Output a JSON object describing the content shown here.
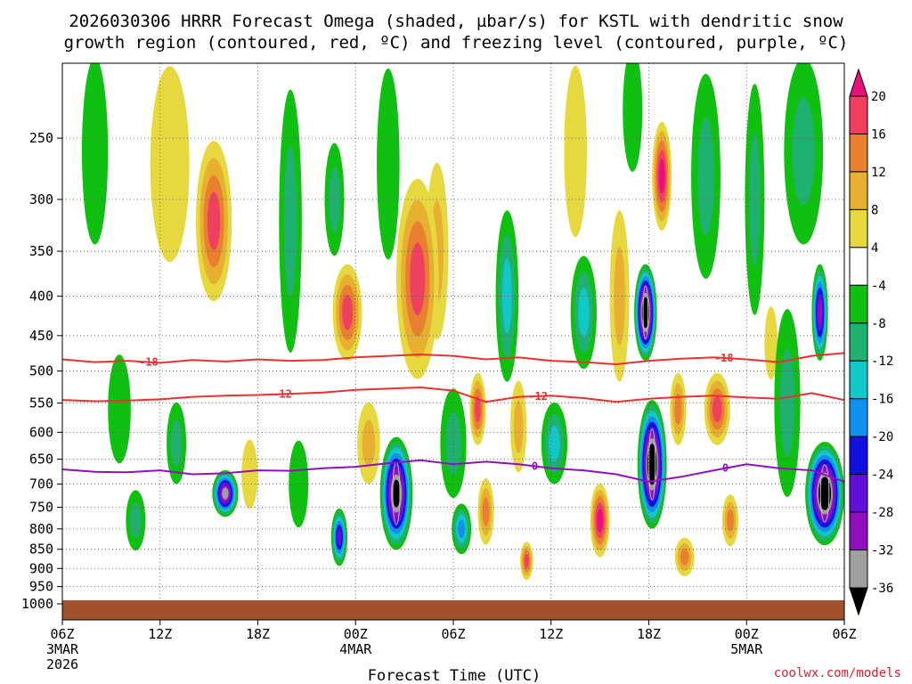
{
  "chart_data": {
    "type": "heatmap",
    "title_line1": "2026030306 HRRR Forecast Omega (shaded, µbar/s) for KSTL with dendritic snow",
    "title_line2": "growth region (contoured, red, ºC) and freezing level (contoured, purple, ºC)",
    "xlabel": "Forecast Time (UTC)",
    "credit": "coolwx.com/models",
    "x_range_hours": [
      0,
      48
    ],
    "y_range_mb": [
      200,
      1000
    ],
    "y_ticks": [
      250,
      300,
      350,
      400,
      450,
      500,
      550,
      600,
      650,
      700,
      750,
      800,
      850,
      900,
      950,
      1000
    ],
    "y_tick_labels": [
      "250",
      "300",
      "350",
      "400",
      "450",
      "500",
      "550",
      "600",
      "650",
      "700",
      "750",
      "800",
      "850",
      "900",
      "950",
      "1000"
    ],
    "x_ticks": [
      {
        "hour": 0,
        "label": "06Z",
        "sub1": "3MAR",
        "sub2": "2026"
      },
      {
        "hour": 6,
        "label": "12Z"
      },
      {
        "hour": 12,
        "label": "18Z"
      },
      {
        "hour": 18,
        "label": "00Z",
        "sub1": "4MAR"
      },
      {
        "hour": 24,
        "label": "06Z"
      },
      {
        "hour": 30,
        "label": "12Z"
      },
      {
        "hour": 36,
        "label": "18Z"
      },
      {
        "hour": 42,
        "label": "00Z",
        "sub1": "5MAR"
      },
      {
        "hour": 48,
        "label": "06Z"
      }
    ],
    "colorbar": {
      "levels": [
        -36,
        -32,
        -28,
        -24,
        -20,
        -16,
        -12,
        -8,
        -4,
        4,
        8,
        12,
        16,
        20
      ],
      "labels": [
        "20",
        "16",
        "12",
        "8",
        "4",
        "-4",
        "-8",
        "-12",
        "-16",
        "-20",
        "-24",
        "-28",
        "-32",
        "-36"
      ],
      "colors": [
        "#000000",
        "#a0a0a0",
        "#9010c0",
        "#6010d8",
        "#1010e0",
        "#1090f0",
        "#10c8c8",
        "#20b070",
        "#10c010",
        "#ffffff",
        "#e8d840",
        "#e8b030",
        "#e88030",
        "#f04060",
        "#e8107c"
      ]
    },
    "contours": [
      {
        "name": "-18 C",
        "color": "#ec3030",
        "label": "-18",
        "points": [
          [
            0,
            483
          ],
          [
            2,
            487
          ],
          [
            4,
            485
          ],
          [
            6,
            488
          ],
          [
            8,
            484
          ],
          [
            10,
            486
          ],
          [
            12,
            483
          ],
          [
            14,
            485
          ],
          [
            16,
            484
          ],
          [
            18,
            480
          ],
          [
            20,
            478
          ],
          [
            22,
            476
          ],
          [
            24,
            478
          ],
          [
            26,
            483
          ],
          [
            28,
            480
          ],
          [
            30,
            485
          ],
          [
            32,
            487
          ],
          [
            34,
            490
          ],
          [
            36,
            485
          ],
          [
            38,
            482
          ],
          [
            40,
            480
          ],
          [
            42,
            483
          ],
          [
            44,
            487
          ],
          [
            46,
            478
          ],
          [
            48,
            474
          ]
        ],
        "label_hours": [
          5.3,
          40.6
        ]
      },
      {
        "name": "-12 C",
        "color": "#ec3030",
        "label": "-12",
        "points": [
          [
            0,
            545
          ],
          [
            2,
            547
          ],
          [
            4,
            546
          ],
          [
            6,
            544
          ],
          [
            8,
            540
          ],
          [
            10,
            538
          ],
          [
            12,
            537
          ],
          [
            14,
            535
          ],
          [
            16,
            533
          ],
          [
            18,
            529
          ],
          [
            20,
            527
          ],
          [
            22,
            525
          ],
          [
            24,
            530
          ],
          [
            26,
            548
          ],
          [
            28,
            540
          ],
          [
            30,
            538
          ],
          [
            32,
            542
          ],
          [
            34,
            548
          ],
          [
            36,
            543
          ],
          [
            38,
            540
          ],
          [
            40,
            538
          ],
          [
            42,
            541
          ],
          [
            44,
            543
          ],
          [
            46,
            534
          ],
          [
            48,
            545
          ]
        ],
        "label_hours": [
          13.5,
          29.2
        ]
      },
      {
        "name": "0 C freezing level",
        "color": "#9010c0",
        "label": "0",
        "points": [
          [
            0,
            670
          ],
          [
            2,
            675
          ],
          [
            4,
            676
          ],
          [
            6,
            672
          ],
          [
            8,
            680
          ],
          [
            10,
            678
          ],
          [
            12,
            672
          ],
          [
            14,
            673
          ],
          [
            16,
            668
          ],
          [
            18,
            665
          ],
          [
            20,
            658
          ],
          [
            22,
            652
          ],
          [
            24,
            660
          ],
          [
            26,
            655
          ],
          [
            28,
            660
          ],
          [
            30,
            668
          ],
          [
            32,
            672
          ],
          [
            34,
            680
          ],
          [
            36,
            695
          ],
          [
            38,
            685
          ],
          [
            40,
            672
          ],
          [
            42,
            660
          ],
          [
            44,
            668
          ],
          [
            46,
            672
          ],
          [
            48,
            695
          ]
        ],
        "label_hours": [
          29.0,
          40.7
        ]
      }
    ],
    "omega_cells": [
      {
        "t": 2.0,
        "p": 260,
        "tw": 0.8,
        "pw": 180,
        "v": -9
      },
      {
        "t": 3.5,
        "p": 560,
        "tw": 0.7,
        "pw": 180,
        "v": -8
      },
      {
        "t": 4.5,
        "p": 780,
        "tw": 0.6,
        "pw": 140,
        "v": -10
      },
      {
        "t": 6.6,
        "p": 270,
        "tw": 1.2,
        "pw": 180,
        "v": 6
      },
      {
        "t": 9.3,
        "p": 320,
        "tw": 1.1,
        "pw": 150,
        "v": 18
      },
      {
        "t": 10.0,
        "p": 720,
        "tw": 0.8,
        "pw": 100,
        "v": -34
      },
      {
        "t": 7.0,
        "p": 620,
        "tw": 0.6,
        "pw": 150,
        "v": -10
      },
      {
        "t": 11.5,
        "p": 680,
        "tw": 0.5,
        "pw": 140,
        "v": 6
      },
      {
        "t": 14.0,
        "p": 320,
        "tw": 0.7,
        "pw": 240,
        "v": -10
      },
      {
        "t": 14.5,
        "p": 700,
        "tw": 0.6,
        "pw": 180,
        "v": -9
      },
      {
        "t": 16.7,
        "p": 300,
        "tw": 0.6,
        "pw": 100,
        "v": -12
      },
      {
        "t": 17.5,
        "p": 420,
        "tw": 0.9,
        "pw": 120,
        "v": 18
      },
      {
        "t": 18.8,
        "p": 620,
        "tw": 0.7,
        "pw": 150,
        "v": 10
      },
      {
        "t": 17.0,
        "p": 820,
        "tw": 0.5,
        "pw": 140,
        "v": -26
      },
      {
        "t": 20.5,
        "p": 720,
        "tw": 1.0,
        "pw": 240,
        "v": -40
      },
      {
        "t": 20.0,
        "p": 270,
        "tw": 0.7,
        "pw": 170,
        "v": -9
      },
      {
        "t": 21.8,
        "p": 380,
        "tw": 1.3,
        "pw": 220,
        "v": 18
      },
      {
        "t": 23.0,
        "p": 350,
        "tw": 0.7,
        "pw": 180,
        "v": 12
      },
      {
        "t": 24.0,
        "p": 620,
        "tw": 0.8,
        "pw": 200,
        "v": -10
      },
      {
        "t": 24.5,
        "p": 800,
        "tw": 0.6,
        "pw": 120,
        "v": -20
      },
      {
        "t": 25.5,
        "p": 560,
        "tw": 0.5,
        "pw": 120,
        "v": 18
      },
      {
        "t": 26.0,
        "p": 760,
        "tw": 0.5,
        "pw": 150,
        "v": 16
      },
      {
        "t": 27.3,
        "p": 400,
        "tw": 0.7,
        "pw": 200,
        "v": -14
      },
      {
        "t": 28.0,
        "p": 590,
        "tw": 0.5,
        "pw": 160,
        "v": 12
      },
      {
        "t": 28.5,
        "p": 880,
        "tw": 0.4,
        "pw": 100,
        "v": 20
      },
      {
        "t": 30.2,
        "p": 620,
        "tw": 0.8,
        "pw": 150,
        "v": -14
      },
      {
        "t": 31.5,
        "p": 260,
        "tw": 0.7,
        "pw": 150,
        "v": 8
      },
      {
        "t": 32.0,
        "p": 420,
        "tw": 0.8,
        "pw": 140,
        "v": -16
      },
      {
        "t": 33.0,
        "p": 780,
        "tw": 0.6,
        "pw": 170,
        "v": 22
      },
      {
        "t": 34.2,
        "p": 400,
        "tw": 0.6,
        "pw": 200,
        "v": 12
      },
      {
        "t": 35.0,
        "p": 230,
        "tw": 0.6,
        "pw": 120,
        "v": -8
      },
      {
        "t": 35.8,
        "p": 420,
        "tw": 0.7,
        "pw": 120,
        "v": -44
      },
      {
        "t": 36.2,
        "p": 660,
        "tw": 0.9,
        "pw": 250,
        "v": -44
      },
      {
        "t": 36.8,
        "p": 280,
        "tw": 0.6,
        "pw": 90,
        "v": 22
      },
      {
        "t": 37.8,
        "p": 560,
        "tw": 0.5,
        "pw": 120,
        "v": 16
      },
      {
        "t": 38.2,
        "p": 870,
        "tw": 0.6,
        "pw": 100,
        "v": 14
      },
      {
        "t": 39.5,
        "p": 280,
        "tw": 0.9,
        "pw": 180,
        "v": -10
      },
      {
        "t": 40.2,
        "p": 560,
        "tw": 0.8,
        "pw": 120,
        "v": 18
      },
      {
        "t": 41.0,
        "p": 780,
        "tw": 0.5,
        "pw": 120,
        "v": 14
      },
      {
        "t": 42.5,
        "p": 300,
        "tw": 0.6,
        "pw": 200,
        "v": -12
      },
      {
        "t": 44.5,
        "p": 550,
        "tw": 0.8,
        "pw": 300,
        "v": -12
      },
      {
        "t": 45.5,
        "p": 260,
        "tw": 1.2,
        "pw": 180,
        "v": -11
      },
      {
        "t": 46.5,
        "p": 420,
        "tw": 0.5,
        "pw": 120,
        "v": -30
      },
      {
        "t": 46.8,
        "p": 720,
        "tw": 1.2,
        "pw": 220,
        "v": -44
      },
      {
        "t": 43.5,
        "p": 460,
        "tw": 0.4,
        "pw": 100,
        "v": 8
      }
    ]
  }
}
